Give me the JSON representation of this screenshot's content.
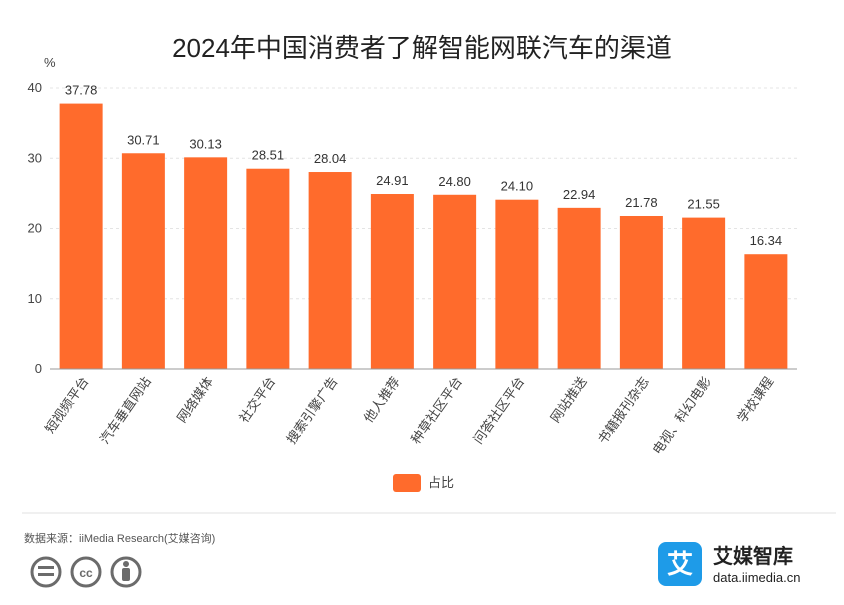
{
  "chart_data": {
    "type": "bar",
    "title": "2024年中国消费者了解智能网联汽车的渠道",
    "unit": "%",
    "ylim": [
      0,
      40
    ],
    "yticks": [
      0,
      10,
      20,
      30,
      40
    ],
    "grid": true,
    "legend_position": "bottom",
    "categories": [
      "短视频平台",
      "汽车垂直网站",
      "网络媒体",
      "社交平台",
      "搜索引擎广告",
      "他人推荐",
      "种草社区平台",
      "问答社区平台",
      "网站推送",
      "书籍报刊杂志",
      "电视、科幻电影",
      "学校课程"
    ],
    "series": [
      {
        "name": "占比",
        "values": [
          37.78,
          30.71,
          30.13,
          28.51,
          28.04,
          24.91,
          24.8,
          24.1,
          22.94,
          21.78,
          21.55,
          16.34
        ]
      }
    ],
    "value_labels": [
      "37.78",
      "30.71",
      "30.13",
      "28.51",
      "28.04",
      "24.91",
      "24.80",
      "24.10",
      "22.94",
      "21.78",
      "21.55",
      "16.34"
    ],
    "bar_color": "#ff6b2c"
  },
  "footer": {
    "source": "数据来源：iiMedia Research(艾媒咨询)",
    "brand_name": "艾媒智库",
    "brand_url": "data.iimedia.cn",
    "brand_logo_char": "艾",
    "brand_color": "#1e9be8"
  }
}
